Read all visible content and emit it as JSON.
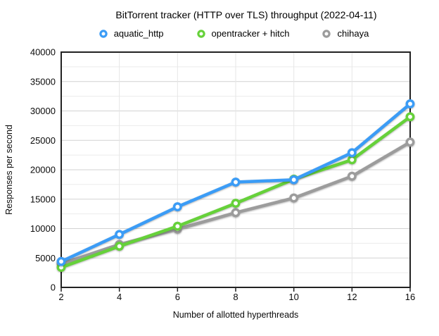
{
  "chart_data": {
    "type": "line",
    "title": "BitTorrent tracker (HTTP over TLS) throughput (2022-04-11)",
    "xlabel": "Number of allotted hyperthreads",
    "ylabel": "Responses per second",
    "categories": [
      2,
      4,
      6,
      8,
      10,
      12,
      16
    ],
    "ylim": [
      0,
      40000
    ],
    "y_ticks": [
      0,
      5000,
      10000,
      15000,
      20000,
      25000,
      30000,
      35000,
      40000
    ],
    "y_minor_step": 2500,
    "grid": true,
    "legend_position": "top",
    "marker_style": "donut",
    "series": [
      {
        "name": "aquatic_http",
        "color": "#3B9CF6",
        "values": [
          4400,
          9000,
          13700,
          17900,
          18300,
          22900,
          31200
        ]
      },
      {
        "name": "opentracker + hitch",
        "color": "#66D13A",
        "values": [
          3400,
          7000,
          10400,
          14300,
          18400,
          21700,
          29000
        ]
      },
      {
        "name": "chihaya",
        "color": "#9C9C9C",
        "values": [
          4000,
          7300,
          9900,
          12700,
          15200,
          18900,
          24700
        ]
      }
    ],
    "colors": {
      "axis_border": "#222222",
      "grid_major": "#d2d2d2",
      "grid_minor": "#ebebeb",
      "grid_vertical": "#e6e6e6",
      "marker_fill": "#ffffff"
    }
  }
}
